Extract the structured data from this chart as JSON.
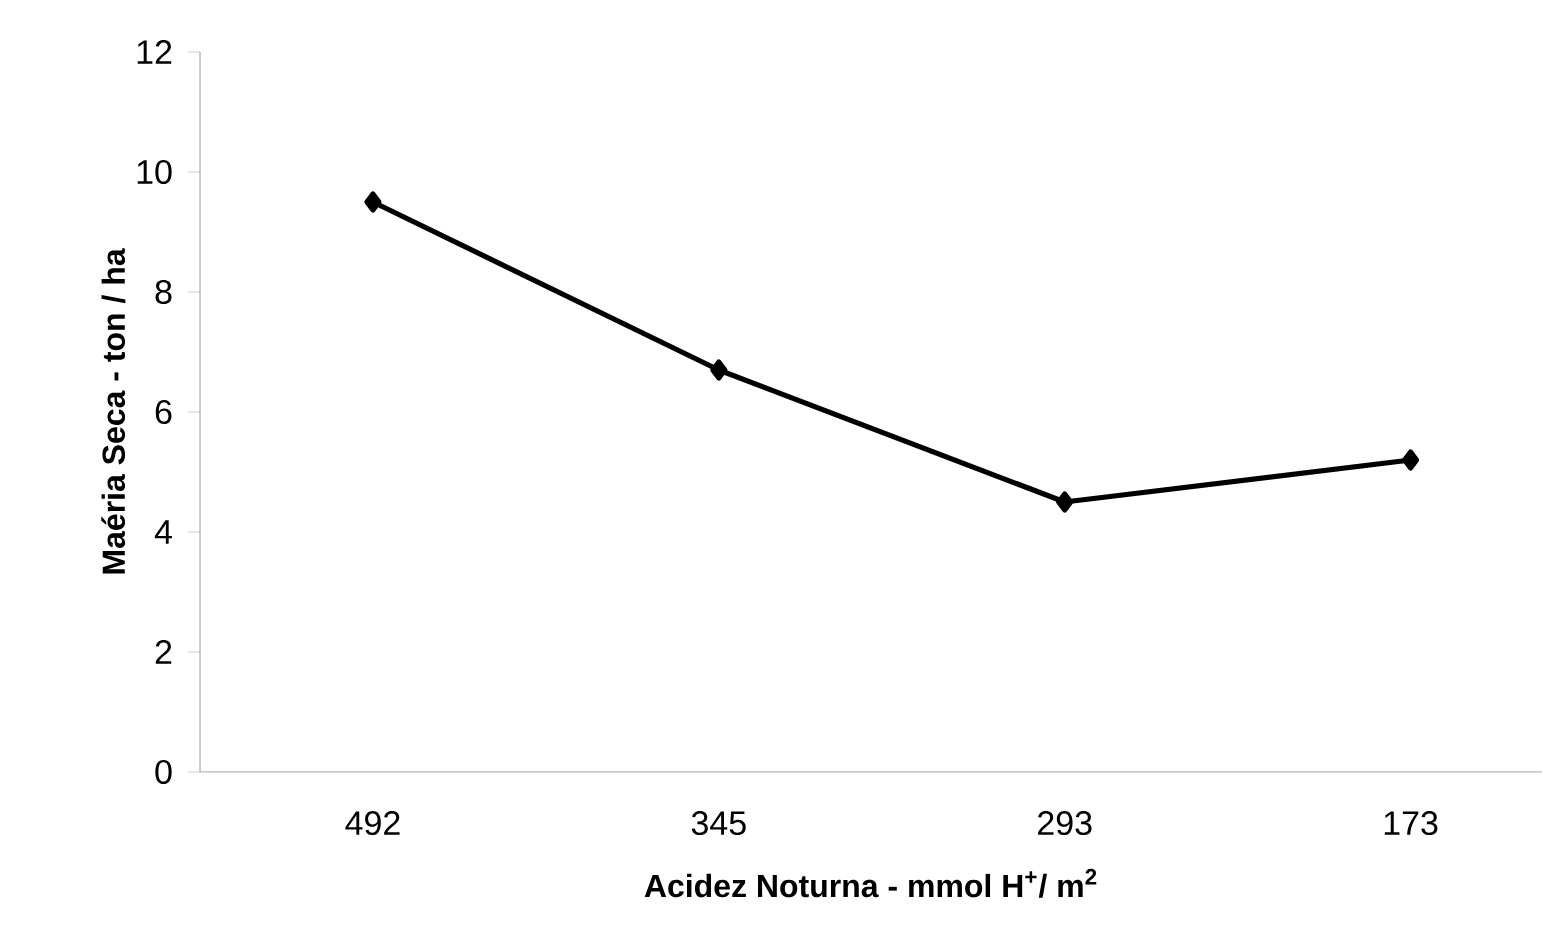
{
  "chart_data": {
    "type": "line",
    "xlabel": "Acidez Noturna - mmol  H$^{+}$/ m$^{2}$",
    "ylabel": "Maéria Seca - ton / ha",
    "categories": [
      "492",
      "345",
      "293",
      "173"
    ],
    "series": [
      {
        "color": "#000000",
        "values": [
          9.5,
          6.7,
          4.5,
          5.2
        ]
      }
    ],
    "ylim": [
      0,
      12
    ],
    "yticks": [
      0,
      2,
      4,
      6,
      8,
      10,
      12
    ],
    "grid": false,
    "marker": "diamond",
    "line_style": "solid"
  }
}
